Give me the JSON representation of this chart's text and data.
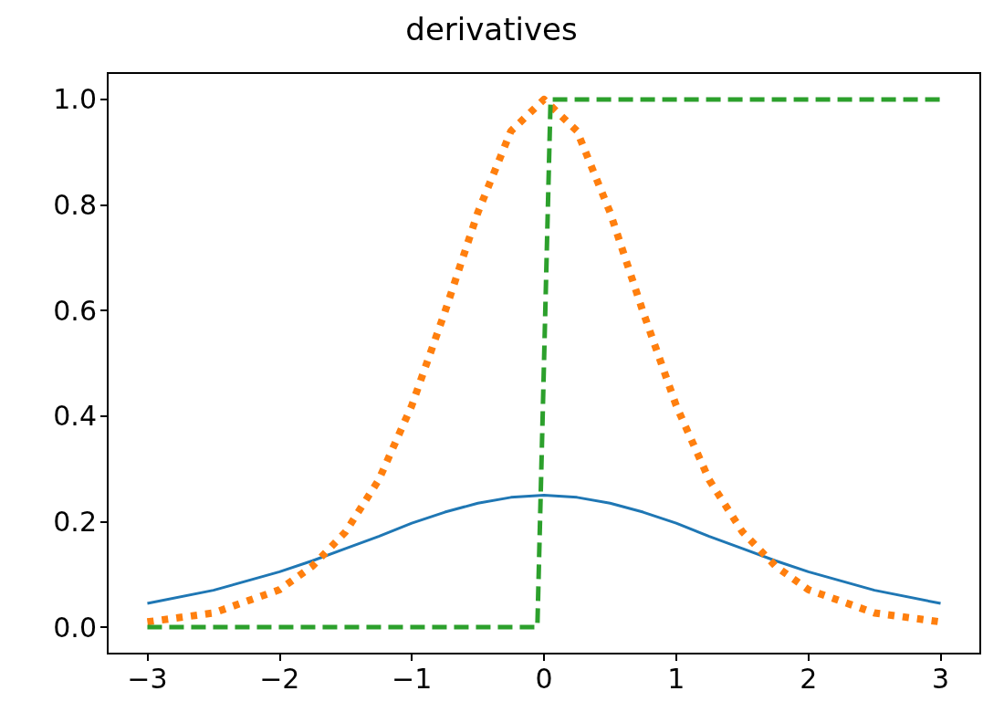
{
  "chart_data": {
    "type": "line",
    "title": "derivatives",
    "series": [
      {
        "color": "#1f77b4",
        "line_style": "solid",
        "x": [
          -3,
          -2.5,
          -2,
          -1.75,
          -1.5,
          -1.25,
          -1,
          -0.75,
          -0.5,
          -0.25,
          0,
          0.25,
          0.5,
          0.75,
          1,
          1.25,
          1.5,
          1.75,
          2,
          2.5,
          3
        ],
        "values": [
          0.045,
          0.07,
          0.105,
          0.126,
          0.149,
          0.172,
          0.197,
          0.218,
          0.235,
          0.246,
          0.25,
          0.246,
          0.235,
          0.218,
          0.197,
          0.172,
          0.149,
          0.126,
          0.105,
          0.07,
          0.045
        ]
      },
      {
        "color": "#ff7f0e",
        "line_style": "dotted",
        "x": [
          -3,
          -2.5,
          -2,
          -1.75,
          -1.5,
          -1.25,
          -1,
          -0.75,
          -0.5,
          -0.25,
          0,
          0.25,
          0.5,
          0.75,
          1,
          1.25,
          1.5,
          1.75,
          2,
          2.5,
          3
        ],
        "values": [
          0.01,
          0.027,
          0.071,
          0.116,
          0.181,
          0.279,
          0.42,
          0.597,
          0.786,
          0.94,
          1,
          0.94,
          0.786,
          0.597,
          0.42,
          0.279,
          0.181,
          0.116,
          0.071,
          0.027,
          0.01
        ]
      },
      {
        "color": "#2ca02c",
        "line_style": "dashed",
        "x": [
          -3,
          -0.05,
          0.05,
          3
        ],
        "values": [
          0,
          0,
          1,
          1
        ]
      }
    ],
    "xlim": [
      -3.3,
      3.3
    ],
    "ylim": [
      -0.05,
      1.05
    ],
    "xticks": [
      {
        "value": -3,
        "label": "−3"
      },
      {
        "value": -2,
        "label": "−2"
      },
      {
        "value": -1,
        "label": "−1"
      },
      0,
      1,
      2,
      3
    ],
    "yticks": [
      {
        "value": 0,
        "label": "0.0"
      },
      {
        "value": 0.2,
        "label": "0.2"
      },
      {
        "value": 0.4,
        "label": "0.4"
      },
      {
        "value": 0.6,
        "label": "0.6"
      },
      {
        "value": 0.8,
        "label": "0.8"
      },
      {
        "value": 1,
        "label": "1.0"
      }
    ],
    "grid": false,
    "marker": "none"
  }
}
